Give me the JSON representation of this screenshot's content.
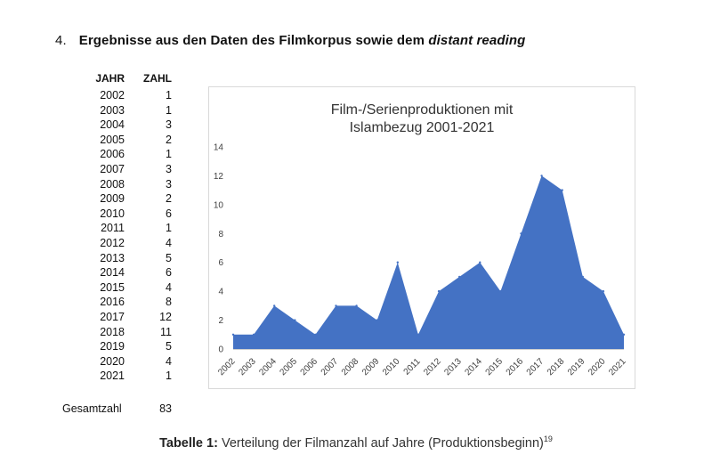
{
  "heading": {
    "number": "4.",
    "text": "Ergebnisse aus den Daten des Filmkorpus sowie dem",
    "italic": "distant reading"
  },
  "table": {
    "header_year": "JAHR",
    "header_count": "ZAHL",
    "rows": [
      {
        "year": "2002",
        "count": "1"
      },
      {
        "year": "2003",
        "count": "1"
      },
      {
        "year": "2004",
        "count": "3"
      },
      {
        "year": "2005",
        "count": "2"
      },
      {
        "year": "2006",
        "count": "1"
      },
      {
        "year": "2007",
        "count": "3"
      },
      {
        "year": "2008",
        "count": "3"
      },
      {
        "year": "2009",
        "count": "2"
      },
      {
        "year": "2010",
        "count": "6"
      },
      {
        "year": "2011",
        "count": "1"
      },
      {
        "year": "2012",
        "count": "4"
      },
      {
        "year": "2013",
        "count": "5"
      },
      {
        "year": "2014",
        "count": "6"
      },
      {
        "year": "2015",
        "count": "4"
      },
      {
        "year": "2016",
        "count": "8"
      },
      {
        "year": "2017",
        "count": "12"
      },
      {
        "year": "2018",
        "count": "11"
      },
      {
        "year": "2019",
        "count": "5"
      },
      {
        "year": "2020",
        "count": "4"
      },
      {
        "year": "2021",
        "count": "1"
      }
    ],
    "total_label": "Gesamtzahl",
    "total_value": "83"
  },
  "caption": {
    "label": "Tabelle 1:",
    "text": "Verteilung der Filmanzahl auf Jahre (Produktionsbeginn)",
    "footnote": "19"
  },
  "chart_data": {
    "type": "area",
    "title_line1": "Film-/Serienproduktionen mit",
    "title_line2": "Islambezug 2001-2021",
    "categories": [
      "2002",
      "2003",
      "2004",
      "2005",
      "2006",
      "2007",
      "2008",
      "2009",
      "2010",
      "2011",
      "2012",
      "2013",
      "2014",
      "2015",
      "2016",
      "2017",
      "2018",
      "2019",
      "2020",
      "2021"
    ],
    "values": [
      1,
      1,
      3,
      2,
      1,
      3,
      3,
      2,
      6,
      1,
      4,
      5,
      6,
      4,
      8,
      12,
      11,
      5,
      4,
      1
    ],
    "ylim": [
      0,
      14
    ],
    "yticks": [
      0,
      2,
      4,
      6,
      8,
      10,
      12,
      14
    ],
    "grid": false,
    "legend": "none",
    "fill_color": "#4472c4"
  }
}
